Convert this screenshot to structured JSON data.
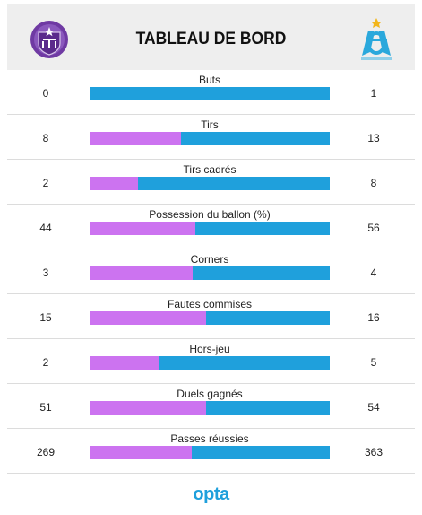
{
  "header": {
    "title": "TABLEAU DE BORD",
    "home_logo": "toulouse-fc-crest-icon",
    "away_logo": "olympique-de-marseille-crest-icon"
  },
  "colors": {
    "home": "#cc73f0",
    "away": "#1fa0dc",
    "row_border": "#dcdcdc",
    "header_bg": "#eeeeee"
  },
  "stats": [
    {
      "label": "Buts",
      "home": "0",
      "away": "1"
    },
    {
      "label": "Tirs",
      "home": "8",
      "away": "13"
    },
    {
      "label": "Tirs cadrés",
      "home": "2",
      "away": "8"
    },
    {
      "label": "Possession du ballon (%)",
      "home": "44",
      "away": "56"
    },
    {
      "label": "Corners",
      "home": "3",
      "away": "4"
    },
    {
      "label": "Fautes commises",
      "home": "15",
      "away": "16"
    },
    {
      "label": "Hors-jeu",
      "home": "2",
      "away": "5"
    },
    {
      "label": "Duels gagnés",
      "home": "51",
      "away": "54"
    },
    {
      "label": "Passes réussies",
      "home": "269",
      "away": "363"
    }
  ],
  "footer": {
    "brand": "opta"
  }
}
